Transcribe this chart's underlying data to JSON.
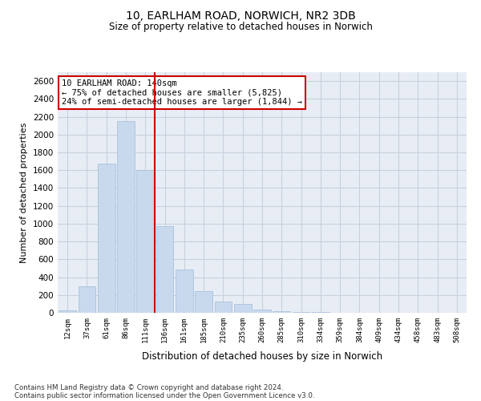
{
  "title_line1": "10, EARLHAM ROAD, NORWICH, NR2 3DB",
  "title_line2": "Size of property relative to detached houses in Norwich",
  "xlabel": "Distribution of detached houses by size in Norwich",
  "ylabel": "Number of detached properties",
  "bar_color": "#c8d8ed",
  "bar_edge_color": "#a0bcd8",
  "vline_color": "#cc0000",
  "vline_x_idx": 5,
  "annotation_text": "10 EARLHAM ROAD: 140sqm\n← 75% of detached houses are smaller (5,825)\n24% of semi-detached houses are larger (1,844) →",
  "annotation_box_color": "#cc0000",
  "categories": [
    "12sqm",
    "37sqm",
    "61sqm",
    "86sqm",
    "111sqm",
    "136sqm",
    "161sqm",
    "185sqm",
    "210sqm",
    "235sqm",
    "260sqm",
    "285sqm",
    "310sqm",
    "334sqm",
    "359sqm",
    "384sqm",
    "409sqm",
    "434sqm",
    "458sqm",
    "483sqm",
    "508sqm"
  ],
  "values": [
    28,
    300,
    1670,
    2150,
    1600,
    975,
    490,
    245,
    130,
    100,
    35,
    18,
    10,
    5,
    3,
    2,
    1,
    1,
    1,
    1,
    0
  ],
  "ylim": [
    0,
    2700
  ],
  "yticks": [
    0,
    200,
    400,
    600,
    800,
    1000,
    1200,
    1400,
    1600,
    1800,
    2000,
    2200,
    2400,
    2600
  ],
  "footer_line1": "Contains HM Land Registry data © Crown copyright and database right 2024.",
  "footer_line2": "Contains public sector information licensed under the Open Government Licence v3.0.",
  "bg_color": "#ffffff",
  "plot_bg_color": "#e8edf5",
  "grid_color": "#c8d0df"
}
